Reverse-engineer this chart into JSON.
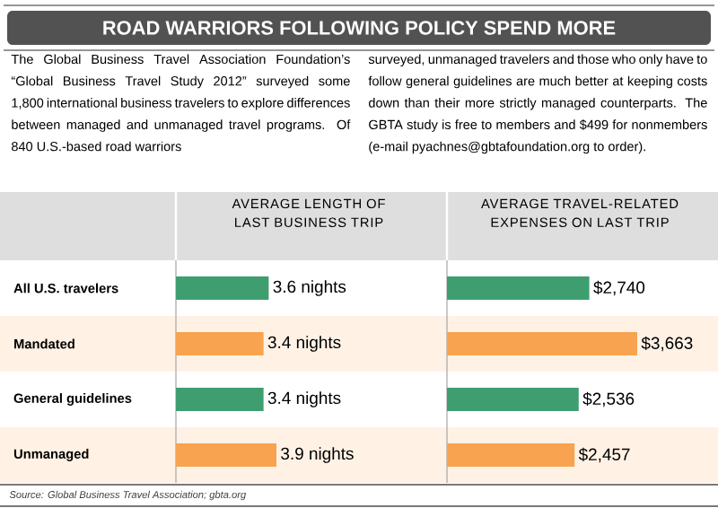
{
  "chart_data": [
    {
      "type": "other",
      "title": "ROAD WARRIORS FOLLOWING POLICY SPEND MORE",
      "annotations": [
        "The Global Business Travel Association Foundation’s “Global Business Travel Study 2012” surveyed some 1,800 international business travelers to explore differences between managed and unmanaged travel programs. Of 840 U.S.-based road warriors",
        "surveyed, unmanaged travelers and those who only have to follow general guidelines are much better at keeping costs down than their more strictly managed counterparts. The GBTA study is free to members and $499 for nonmembers (e-mail pyachnes@gbtafoundation.org to order).",
        "Source: Global Business Travel Association; gbta.org"
      ]
    },
    {
      "type": "bar",
      "orientation": "horizontal",
      "title": "AVERAGE LENGTH OF LAST BUSINESS TRIP",
      "categories": [
        "All U.S. travelers",
        "Mandated",
        "General guidelines",
        "Unmanaged"
      ],
      "values": [
        3.6,
        3.4,
        3.4,
        3.9
      ],
      "colors": [
        "#3f9e6f",
        "#f7a350",
        "#3f9e6f",
        "#f7a350"
      ],
      "value_labels": [
        "3.6 nights",
        "3.4 nights",
        "3.4 nights",
        "3.9 nights"
      ],
      "tick_labels": "y"
    },
    {
      "type": "bar",
      "orientation": "horizontal",
      "title": "AVERAGE TRAVEL-RELATED EXPENSES ON LAST TRIP",
      "values": [
        2740,
        3663,
        2536,
        2457
      ],
      "categories": [
        null,
        null,
        null,
        null
      ],
      "colors": [
        "#3f9e6f",
        "#f7a350",
        "#3f9e6f",
        "#f7a350"
      ],
      "value_labels": [
        "$2,740",
        "$3,663",
        "$2,536",
        "$2,457"
      ],
      "tick_labels": false
    }
  ]
}
